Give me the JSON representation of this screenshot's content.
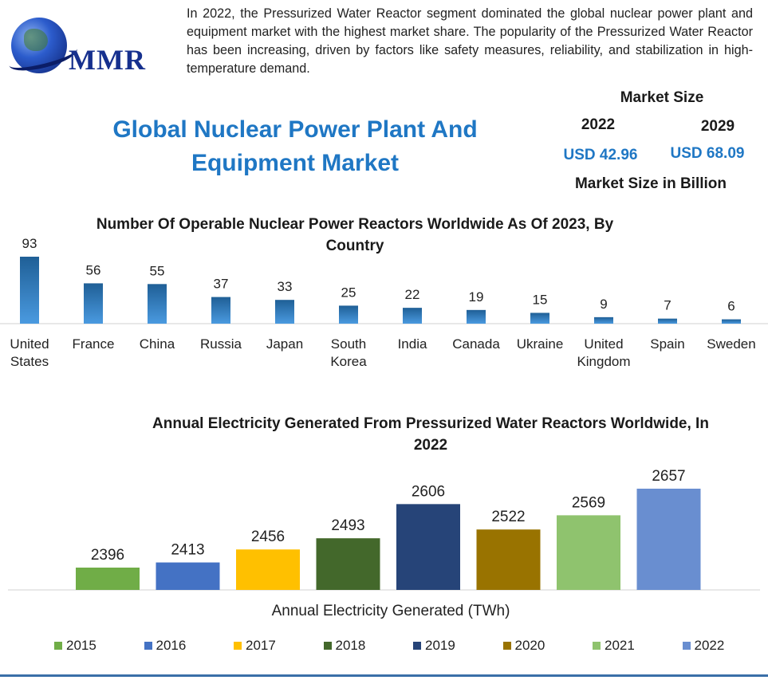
{
  "logo": {
    "text": "MMR"
  },
  "intro_text": "In 2022, the Pressurized Water Reactor segment dominated the global nuclear power plant and equipment market with the highest market share. The popularity of the Pressurized Water Reactor has been increasing, driven by factors like safety measures, reliability, and stabilization in high-temperature demand.",
  "main_title": "Global Nuclear Power Plant And Equipment Market",
  "market_size": {
    "heading": "Market Size",
    "year_1": "2022",
    "year_2": "2029",
    "value_1": "USD 42.96",
    "value_2": "USD 68.09",
    "unit": "Market Size in Billion"
  },
  "chart_data": [
    {
      "type": "bar",
      "title": "Number Of Operable Nuclear Power Reactors Worldwide As Of 2023, By Country",
      "categories": [
        "United States",
        "France",
        "China",
        "Russia",
        "Japan",
        "South Korea",
        "India",
        "Canada",
        "Ukraine",
        "United Kingdom",
        "Spain",
        "Sweden"
      ],
      "values": [
        93,
        56,
        55,
        37,
        33,
        25,
        22,
        19,
        15,
        9,
        7,
        6
      ],
      "bar_color": "#2f7fc1",
      "grid": false
    },
    {
      "type": "bar",
      "title": "Annual Electricity Generated From Pressurized Water Reactors Worldwide, In 2022",
      "xlabel": "Annual Electricity Generated (TWh)",
      "categories": [
        "2015",
        "2016",
        "2017",
        "2018",
        "2019",
        "2020",
        "2021",
        "2022"
      ],
      "values": [
        2396,
        2413,
        2456,
        2493,
        2606,
        2522,
        2569,
        2657
      ],
      "colors": [
        "#70ad47",
        "#4472c4",
        "#ffc000",
        "#43682b",
        "#264478",
        "#997300",
        "#8fc36e",
        "#698ed0"
      ],
      "legend_position": "bottom",
      "grid": false
    }
  ]
}
